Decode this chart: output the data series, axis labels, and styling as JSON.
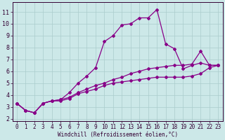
{
  "xlabel": "Windchill (Refroidissement éolien,°C)",
  "bg_color": "#cce8e8",
  "line_color": "#880088",
  "xlim": [
    -0.5,
    23.5
  ],
  "ylim": [
    1.8,
    11.8
  ],
  "xticks": [
    0,
    1,
    2,
    3,
    4,
    5,
    6,
    7,
    8,
    9,
    10,
    11,
    12,
    13,
    14,
    15,
    16,
    17,
    18,
    19,
    20,
    21,
    22,
    23
  ],
  "yticks": [
    2,
    3,
    4,
    5,
    6,
    7,
    8,
    9,
    10,
    11
  ],
  "line1_x": [
    0,
    1,
    2,
    3,
    4,
    5,
    6,
    7,
    8,
    9,
    10,
    11,
    12,
    13,
    14,
    15,
    16,
    17,
    18,
    19,
    20,
    21,
    22,
    23
  ],
  "line1_y": [
    3.3,
    2.7,
    2.5,
    3.3,
    3.5,
    3.5,
    3.7,
    4.1,
    4.3,
    4.5,
    4.8,
    5.0,
    5.1,
    5.2,
    5.3,
    5.4,
    5.5,
    5.5,
    5.5,
    5.5,
    5.6,
    5.8,
    6.3,
    6.5
  ],
  "line2_x": [
    0,
    1,
    2,
    3,
    4,
    5,
    6,
    7,
    8,
    9,
    10,
    11,
    12,
    13,
    14,
    15,
    16,
    17,
    18,
    19,
    20,
    21,
    22,
    23
  ],
  "line2_y": [
    3.3,
    2.7,
    2.5,
    3.3,
    3.5,
    3.6,
    4.2,
    5.0,
    5.6,
    6.3,
    8.5,
    9.0,
    9.9,
    10.0,
    10.5,
    10.5,
    11.2,
    8.3,
    7.9,
    6.2,
    6.5,
    6.7,
    6.5,
    6.5
  ],
  "line3_x": [
    0,
    1,
    2,
    3,
    4,
    5,
    6,
    7,
    8,
    9,
    10,
    11,
    12,
    13,
    14,
    15,
    16,
    17,
    18,
    19,
    20,
    21,
    22,
    23
  ],
  "line3_y": [
    3.3,
    2.7,
    2.5,
    3.3,
    3.5,
    3.6,
    3.8,
    4.2,
    4.5,
    4.8,
    5.0,
    5.3,
    5.5,
    5.8,
    6.0,
    6.2,
    6.3,
    6.4,
    6.5,
    6.5,
    6.6,
    7.7,
    6.5,
    6.5
  ],
  "grid_color": "#aacccc",
  "grid_linewidth": 0.5,
  "marker": "D",
  "markersize": 2.0,
  "linewidth": 0.9,
  "tick_fontsize": 5.5,
  "xlabel_fontsize": 5.5
}
